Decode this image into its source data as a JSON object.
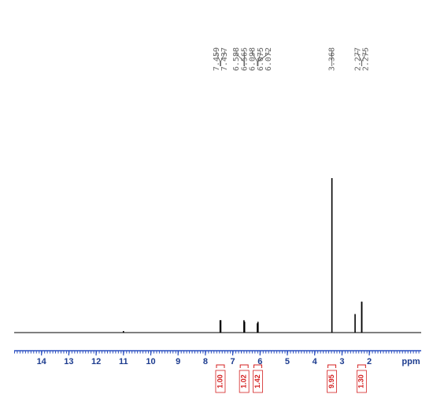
{
  "chart_data": {
    "type": "nmr",
    "xlabel": "ppm",
    "xlim": [
      15,
      0.1
    ],
    "ylim": [
      0,
      100
    ],
    "xticks": [
      14,
      13,
      12,
      11,
      10,
      9,
      8,
      7,
      6,
      5,
      4,
      3,
      2
    ],
    "x": [
      11.0,
      7.459,
      7.437,
      6.588,
      6.565,
      6.098,
      6.075,
      6.072,
      3.368,
      2.52,
      2.277,
      2.275
    ],
    "values": [
      1,
      8,
      8,
      8,
      7,
      6,
      7,
      6,
      100,
      12,
      20,
      20
    ],
    "color": "#000000",
    "peak_labels": [
      7.459,
      7.437,
      6.588,
      6.565,
      6.098,
      6.075,
      6.072,
      3.368,
      2.277,
      2.275
    ],
    "integrals": {
      "x": [
        7.45,
        6.58,
        6.08,
        3.37,
        2.28
      ],
      "values": [
        1.0,
        1.02,
        1.42,
        9.95,
        1.3
      ],
      "value_labels": [
        "1.00",
        "1.02",
        "1.42",
        "9.95",
        "1.30"
      ]
    }
  }
}
